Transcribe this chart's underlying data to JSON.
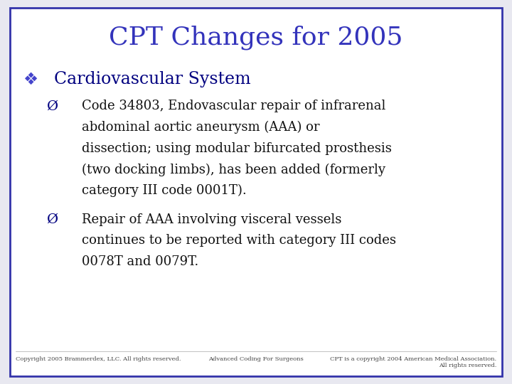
{
  "title": "CPT Changes for 2005",
  "title_color": "#3333bb",
  "title_fontsize": 26,
  "background_color": "#e8e8f0",
  "border_color": "#3333aa",
  "bullet1_color": "#000080",
  "bullet1_fontsize": 17,
  "sub_bullet_color": "#111111",
  "sub_bullet_fontsize": 13,
  "sub1_line1": "Code 34803, Endovascular repair of infrarenal",
  "sub1_line2": "abdominal aortic aneurysm (AAA) or",
  "sub1_line3": "dissection; using modular bifurcated prosthesis",
  "sub1_line4": "(two docking limbs), has been added (formerly",
  "sub1_line5": "category III code 0001T).",
  "sub2_line1": "Repair of AAA involving visceral vessels",
  "sub2_line2": "continues to be reported with category III codes",
  "sub2_line3": "0078T and 0079T.",
  "footer_left": "Copyright 2005 Brammerdex, LLC. All rights reserved.",
  "footer_center": "Advanced Coding For Surgeons",
  "footer_right": "CPT is a copyright 2004 American Medical Association.\nAll rights reserved.",
  "footer_fontsize": 6,
  "inner_bg": "#ffffff"
}
